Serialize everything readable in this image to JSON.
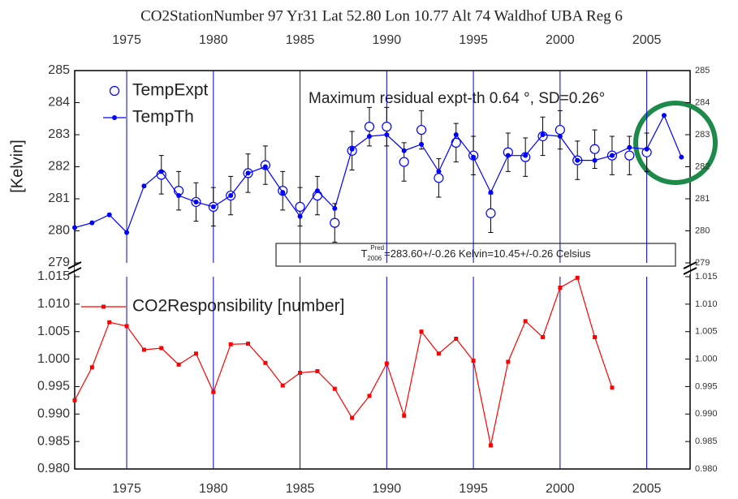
{
  "chart_data": [
    {
      "type": "line",
      "title": "CO2StationNumber 97  Yr31 Lat 52.80 Lon 10.77 Alt 74 Waldhof  UBA Reg 6",
      "ylabel": "[Kelvin]",
      "xlim": [
        1972,
        2007.5
      ],
      "xticks": [
        1975,
        1980,
        1985,
        1990,
        1995,
        2000,
        2005
      ],
      "ylim": [
        279,
        285
      ],
      "yticks": [
        279,
        280,
        281,
        282,
        283,
        284,
        285
      ],
      "grid": true,
      "grid_color": "#0000cc",
      "x": [
        1972,
        1973,
        1974,
        1975,
        1976,
        1977,
        1978,
        1979,
        1980,
        1981,
        1982,
        1983,
        1984,
        1985,
        1986,
        1987,
        1988,
        1989,
        1990,
        1991,
        1992,
        1993,
        1994,
        1995,
        1996,
        1997,
        1998,
        1999,
        2000,
        2001,
        2002,
        2003,
        2004,
        2005,
        2006,
        2007
      ],
      "series": [
        {
          "name": "TempExpt",
          "color": "#0000ff",
          "marker": "open-circle",
          "values": [
            null,
            null,
            null,
            null,
            null,
            281.75,
            281.25,
            280.9,
            280.75,
            281.1,
            281.8,
            282.05,
            281.25,
            280.75,
            281.1,
            280.25,
            282.5,
            283.25,
            283.25,
            282.15,
            283.15,
            281.65,
            282.75,
            282.35,
            280.55,
            282.45,
            282.3,
            282.95,
            283.15,
            282.2,
            282.55,
            282.35,
            282.35,
            282.45,
            null,
            null
          ],
          "errors": [
            null,
            null,
            null,
            null,
            null,
            0.6,
            0.6,
            0.6,
            0.6,
            0.6,
            0.6,
            0.6,
            0.6,
            0.6,
            0.6,
            0.6,
            0.6,
            0.6,
            0.6,
            0.6,
            0.6,
            0.6,
            0.6,
            0.6,
            0.6,
            0.6,
            0.6,
            0.6,
            0.6,
            0.6,
            0.6,
            0.6,
            0.6,
            0.6,
            null,
            null
          ]
        },
        {
          "name": "TempTh",
          "color": "#0000ff",
          "marker": "dot",
          "values": [
            280.1,
            280.25,
            280.5,
            279.95,
            281.4,
            281.85,
            281.1,
            280.9,
            280.75,
            281.1,
            281.8,
            282.0,
            281.2,
            280.45,
            281.25,
            280.7,
            282.55,
            282.95,
            283.0,
            282.5,
            282.7,
            281.85,
            283.0,
            282.3,
            281.2,
            282.35,
            282.35,
            283.0,
            282.95,
            282.2,
            282.2,
            282.35,
            282.6,
            282.55,
            283.6,
            282.3
          ]
        }
      ],
      "annotations": [
        "Maximum residual expt-th 0.64 °, SD=0.26°"
      ],
      "prediction": {
        "symbol": "T",
        "subscript": "2006",
        "superscript": "Pred",
        "text": "=283.60+/-0.26 Kelvin=10.45+/-0.26 Celsius"
      }
    },
    {
      "type": "line",
      "xlim": [
        1972,
        2007.5
      ],
      "xticks": [
        1975,
        1980,
        1985,
        1990,
        1995,
        2000,
        2005
      ],
      "ylim": [
        0.98,
        1.015
      ],
      "yticks": [
        {
          "value": 0.98,
          "label": "0.980"
        },
        {
          "value": 0.985,
          "label": "0.985"
        },
        {
          "value": 0.99,
          "label": "0.990"
        },
        {
          "value": 0.995,
          "label": "0.995"
        },
        {
          "value": 1.0,
          "label": "1.000"
        },
        {
          "value": 1.005,
          "label": "1.005"
        },
        {
          "value": 1.01,
          "label": "1.010"
        },
        {
          "value": 1.015,
          "label": "1.015"
        }
      ],
      "grid": true,
      "grid_color": "#0000cc",
      "x": [
        1972,
        1973,
        1974,
        1975,
        1976,
        1977,
        1978,
        1979,
        1980,
        1981,
        1982,
        1983,
        1984,
        1985,
        1986,
        1987,
        1988,
        1989,
        1990,
        1991,
        1992,
        1993,
        1994,
        1995,
        1996,
        1997,
        1998,
        1999,
        2000,
        2001,
        2002,
        2003
      ],
      "series": [
        {
          "name": "CO2Responsibility [number]",
          "color": "#ff0000",
          "marker": "square",
          "values": [
            0.9925,
            0.9985,
            1.0067,
            1.006,
            1.0017,
            1.002,
            0.999,
            1.001,
            0.994,
            1.0027,
            1.0028,
            0.9993,
            0.9952,
            0.9975,
            0.9978,
            0.9946,
            0.9893,
            0.9933,
            0.9992,
            0.9897,
            1.005,
            1.001,
            1.0037,
            0.9997,
            0.9843,
            0.9995,
            1.0069,
            1.004,
            1.013,
            1.0148,
            1.004,
            0.9948
          ]
        }
      ]
    }
  ]
}
